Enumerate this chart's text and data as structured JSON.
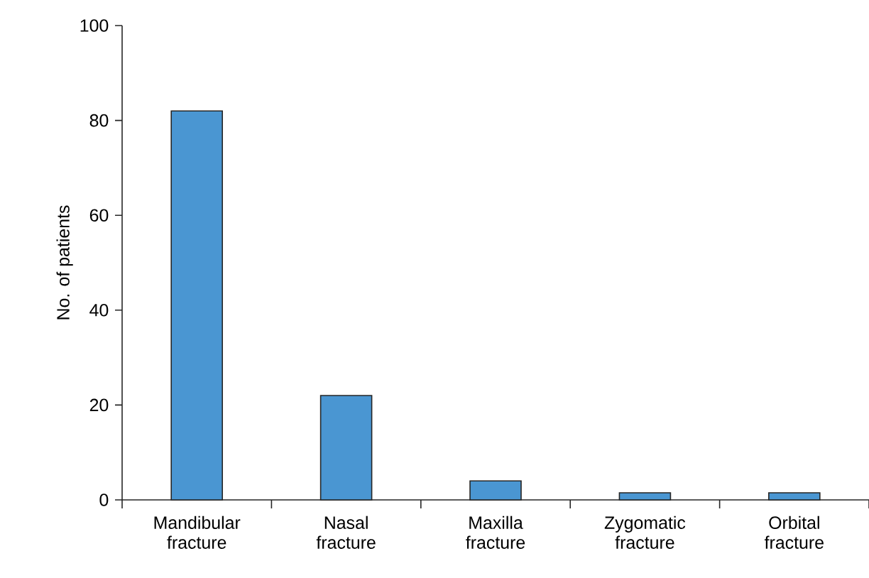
{
  "chart_data": {
    "type": "bar",
    "ylabel": "No. of patients",
    "categories": [
      "Mandibular\nfracture",
      "Nasal\nfracture",
      "Maxilla\nfracture",
      "Zygomatic\nfracture",
      "Orbital\nfracture"
    ],
    "values": [
      82,
      22,
      4,
      1.5,
      1.5
    ],
    "color": "#4a96d2",
    "ylim": [
      0,
      100
    ],
    "yticks": [
      0,
      20,
      40,
      60,
      80,
      100
    ]
  }
}
